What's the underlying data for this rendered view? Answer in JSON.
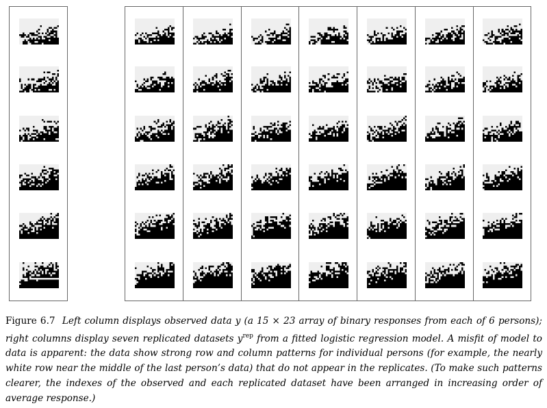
{
  "figure": {
    "label": "Figure 6.7",
    "caption_part1": "Left column displays observed data ",
    "caption_y1": "y",
    "caption_part2": " (a 15 × 23 array of binary responses from each of 6 persons); right columns display seven replicated datasets ",
    "caption_yrep": "y",
    "caption_rep": "rep",
    "caption_part3": " from a fitted logistic regression model. A misfit of model to data is apparent: the data show strong row and column patterns for individual persons (for example, the nearly white row near the middle of the last person’s data) that do not appear in the replicates. (To make such patterns clearer, the indexes of the observed and each replicated dataset have been arranged in increasing order of average response.)"
  },
  "panels": {
    "observed_columns": 1,
    "replicated_columns": 7,
    "persons": 6,
    "rows_per_array": 15,
    "cols_per_array": 23,
    "colors": {
      "zero": "#efefef",
      "one": "#000000",
      "frame": "#666666"
    }
  }
}
